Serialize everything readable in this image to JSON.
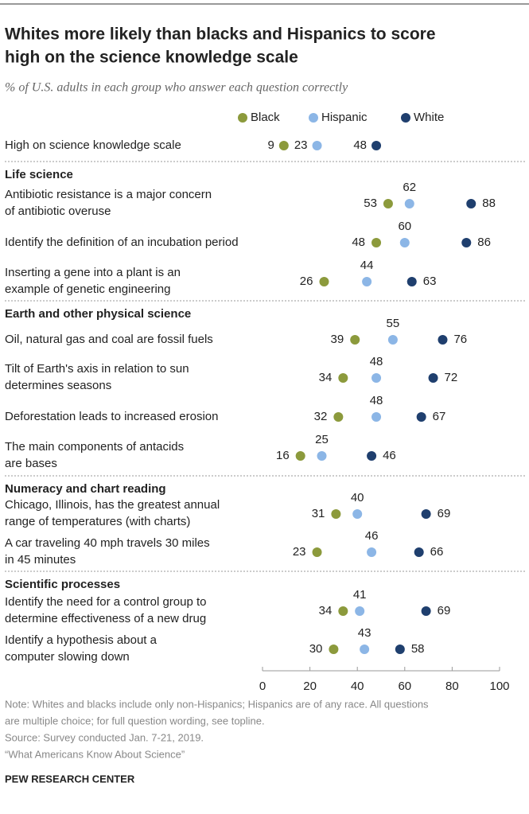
{
  "title": [
    "Whites more likely than blacks and Hispanics to score",
    "high on the science knowledge scale"
  ],
  "subtitle": "% of U.S. adults in each group who answer each question correctly",
  "chart_data": {
    "type": "dot",
    "series": [
      {
        "name": "Black",
        "color": "#8c9a3c"
      },
      {
        "name": "Hispanic",
        "color": "#8cb6e6"
      },
      {
        "name": "White",
        "color": "#1f3f6e"
      }
    ],
    "groups": [
      {
        "title": null,
        "rows": [
          {
            "label": [
              "High on science knowledge scale"
            ],
            "values": [
              9,
              23,
              48
            ]
          }
        ]
      },
      {
        "title": "Life science",
        "rows": [
          {
            "label": [
              "Antibiotic resistance is a major concern",
              "of antibiotic overuse"
            ],
            "values": [
              53,
              62,
              88
            ]
          },
          {
            "label": [
              "Identify the definition of an incubation period"
            ],
            "values": [
              48,
              60,
              86
            ]
          },
          {
            "label": [
              "Inserting a gene into a plant is an",
              "example of genetic engineering"
            ],
            "values": [
              26,
              44,
              63
            ]
          }
        ]
      },
      {
        "title": "Earth and other physical science",
        "rows": [
          {
            "label": [
              "Oil, natural gas and coal are fossil fuels"
            ],
            "values": [
              39,
              55,
              76
            ]
          },
          {
            "label": [
              "Tilt of Earth's axis in relation to sun",
              "determines seasons"
            ],
            "values": [
              34,
              48,
              72
            ]
          },
          {
            "label": [
              "Deforestation leads to increased erosion"
            ],
            "values": [
              32,
              48,
              67
            ]
          },
          {
            "label": [
              "The main components of antacids",
              "are bases"
            ],
            "values": [
              16,
              25,
              46
            ]
          }
        ]
      },
      {
        "title": "Numeracy and chart reading",
        "rows": [
          {
            "label": [
              "Chicago, Illinois, has the greatest annual",
              "range of temperatures (with charts)"
            ],
            "values": [
              31,
              40,
              69
            ]
          },
          {
            "label": [
              "A car traveling 40 mph travels 30 miles",
              "in 45 minutes"
            ],
            "values": [
              23,
              46,
              66
            ]
          }
        ]
      },
      {
        "title": "Scientific processes",
        "rows": [
          {
            "label": [
              "Identify the need for a control group to",
              "determine effectiveness of a new drug"
            ],
            "values": [
              34,
              41,
              69
            ]
          },
          {
            "label": [
              "Identify a hypothesis about a",
              "computer slowing down"
            ],
            "values": [
              30,
              43,
              58
            ]
          }
        ]
      }
    ],
    "xlim": [
      0,
      100
    ],
    "xticks": [
      0,
      20,
      40,
      60,
      80,
      100
    ]
  },
  "note": [
    "Note: Whites and blacks include only non-Hispanics; Hispanics are of any race. All questions",
    "are multiple choice; for full question wording, see topline.",
    "Source: Survey conducted Jan. 7-21, 2019.",
    "“What Americans Know About Science”"
  ],
  "credit": "PEW RESEARCH CENTER"
}
